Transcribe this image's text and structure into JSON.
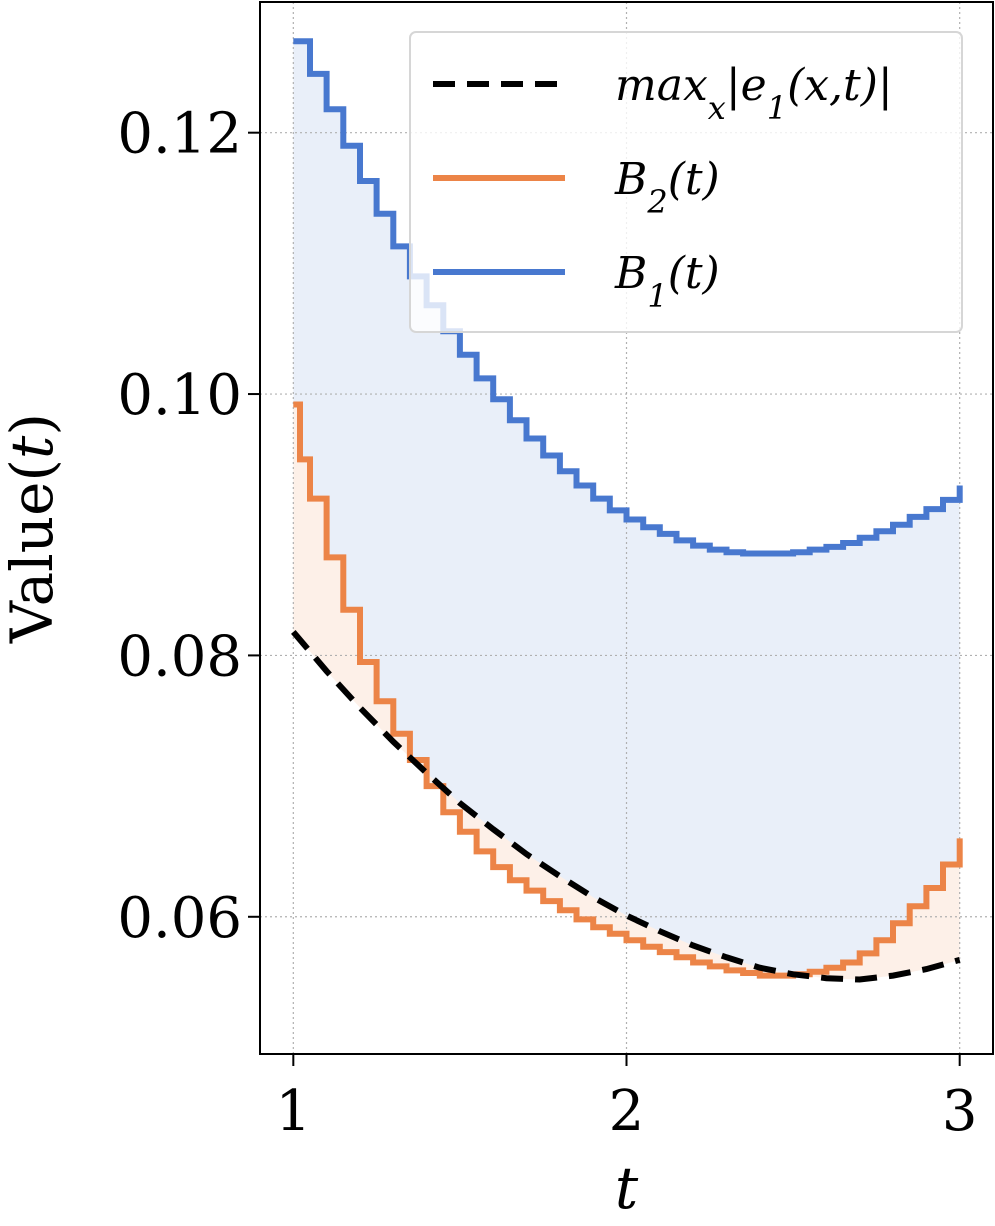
{
  "chart_data": {
    "type": "line",
    "xlabel": "t",
    "ylabel": "Value(t)",
    "xlim": [
      0.9,
      3.1
    ],
    "ylim": [
      0.0495,
      0.13
    ],
    "xticks": [
      1,
      2,
      3
    ],
    "xtick_labels": [
      "1",
      "2",
      "3"
    ],
    "yticks": [
      0.06,
      0.08,
      0.1,
      0.12
    ],
    "ytick_labels": [
      "0.06",
      "0.08",
      "0.10",
      "0.12"
    ],
    "grid": true,
    "legend_position": "top-right",
    "series": [
      {
        "name": "max_x|e_1(x,t)|",
        "style": "dashed",
        "color": "#000000",
        "x": [
          1.0,
          1.1,
          1.2,
          1.3,
          1.4,
          1.5,
          1.6,
          1.7,
          1.8,
          1.9,
          2.0,
          2.1,
          2.2,
          2.3,
          2.4,
          2.5,
          2.6,
          2.7,
          2.8,
          2.9,
          3.0
        ],
        "y": [
          0.0818,
          0.0788,
          0.076,
          0.0734,
          0.071,
          0.0687,
          0.0667,
          0.0648,
          0.0631,
          0.0615,
          0.0601,
          0.0589,
          0.0578,
          0.0569,
          0.0561,
          0.0556,
          0.0553,
          0.0552,
          0.0555,
          0.056,
          0.0567
        ]
      },
      {
        "name": "B_2(t)",
        "style": "step",
        "color": "#ec8447",
        "fill": "#fdf0e8",
        "x": [
          1.0,
          1.02,
          1.05,
          1.1,
          1.15,
          1.2,
          1.25,
          1.3,
          1.35,
          1.4,
          1.45,
          1.5,
          1.55,
          1.6,
          1.65,
          1.7,
          1.75,
          1.8,
          1.85,
          1.9,
          1.95,
          2.0,
          2.05,
          2.1,
          2.15,
          2.2,
          2.25,
          2.3,
          2.35,
          2.4,
          2.45,
          2.5,
          2.55,
          2.6,
          2.65,
          2.7,
          2.75,
          2.8,
          2.85,
          2.9,
          2.95,
          3.0
        ],
        "y": [
          0.0992,
          0.095,
          0.092,
          0.0875,
          0.0835,
          0.0795,
          0.0765,
          0.074,
          0.072,
          0.07,
          0.068,
          0.0665,
          0.065,
          0.0638,
          0.0628,
          0.062,
          0.0612,
          0.0605,
          0.0598,
          0.0592,
          0.0587,
          0.0582,
          0.0577,
          0.0573,
          0.0569,
          0.0565,
          0.0562,
          0.0559,
          0.0557,
          0.0555,
          0.0555,
          0.0556,
          0.0558,
          0.0561,
          0.0565,
          0.0572,
          0.0582,
          0.0595,
          0.0608,
          0.0622,
          0.064,
          0.066
        ]
      },
      {
        "name": "B_1(t)",
        "style": "step",
        "color": "#4878cf",
        "fill": "#e9eff9",
        "x": [
          1.0,
          1.05,
          1.1,
          1.15,
          1.2,
          1.25,
          1.3,
          1.35,
          1.4,
          1.45,
          1.5,
          1.55,
          1.6,
          1.65,
          1.7,
          1.75,
          1.8,
          1.85,
          1.9,
          1.95,
          2.0,
          2.05,
          2.1,
          2.15,
          2.2,
          2.25,
          2.3,
          2.35,
          2.4,
          2.45,
          2.5,
          2.55,
          2.6,
          2.65,
          2.7,
          2.75,
          2.8,
          2.85,
          2.9,
          2.95,
          3.0
        ],
        "y": [
          0.127,
          0.1245,
          0.1218,
          0.119,
          0.1163,
          0.1138,
          0.1113,
          0.109,
          0.1068,
          0.1048,
          0.103,
          0.1012,
          0.0996,
          0.098,
          0.0966,
          0.0953,
          0.0941,
          0.093,
          0.092,
          0.0911,
          0.0904,
          0.0898,
          0.0893,
          0.0888,
          0.0884,
          0.0881,
          0.0879,
          0.0878,
          0.0878,
          0.0878,
          0.0879,
          0.0881,
          0.0883,
          0.0886,
          0.089,
          0.0895,
          0.09,
          0.0906,
          0.0912,
          0.0919,
          0.093
        ]
      }
    ]
  }
}
